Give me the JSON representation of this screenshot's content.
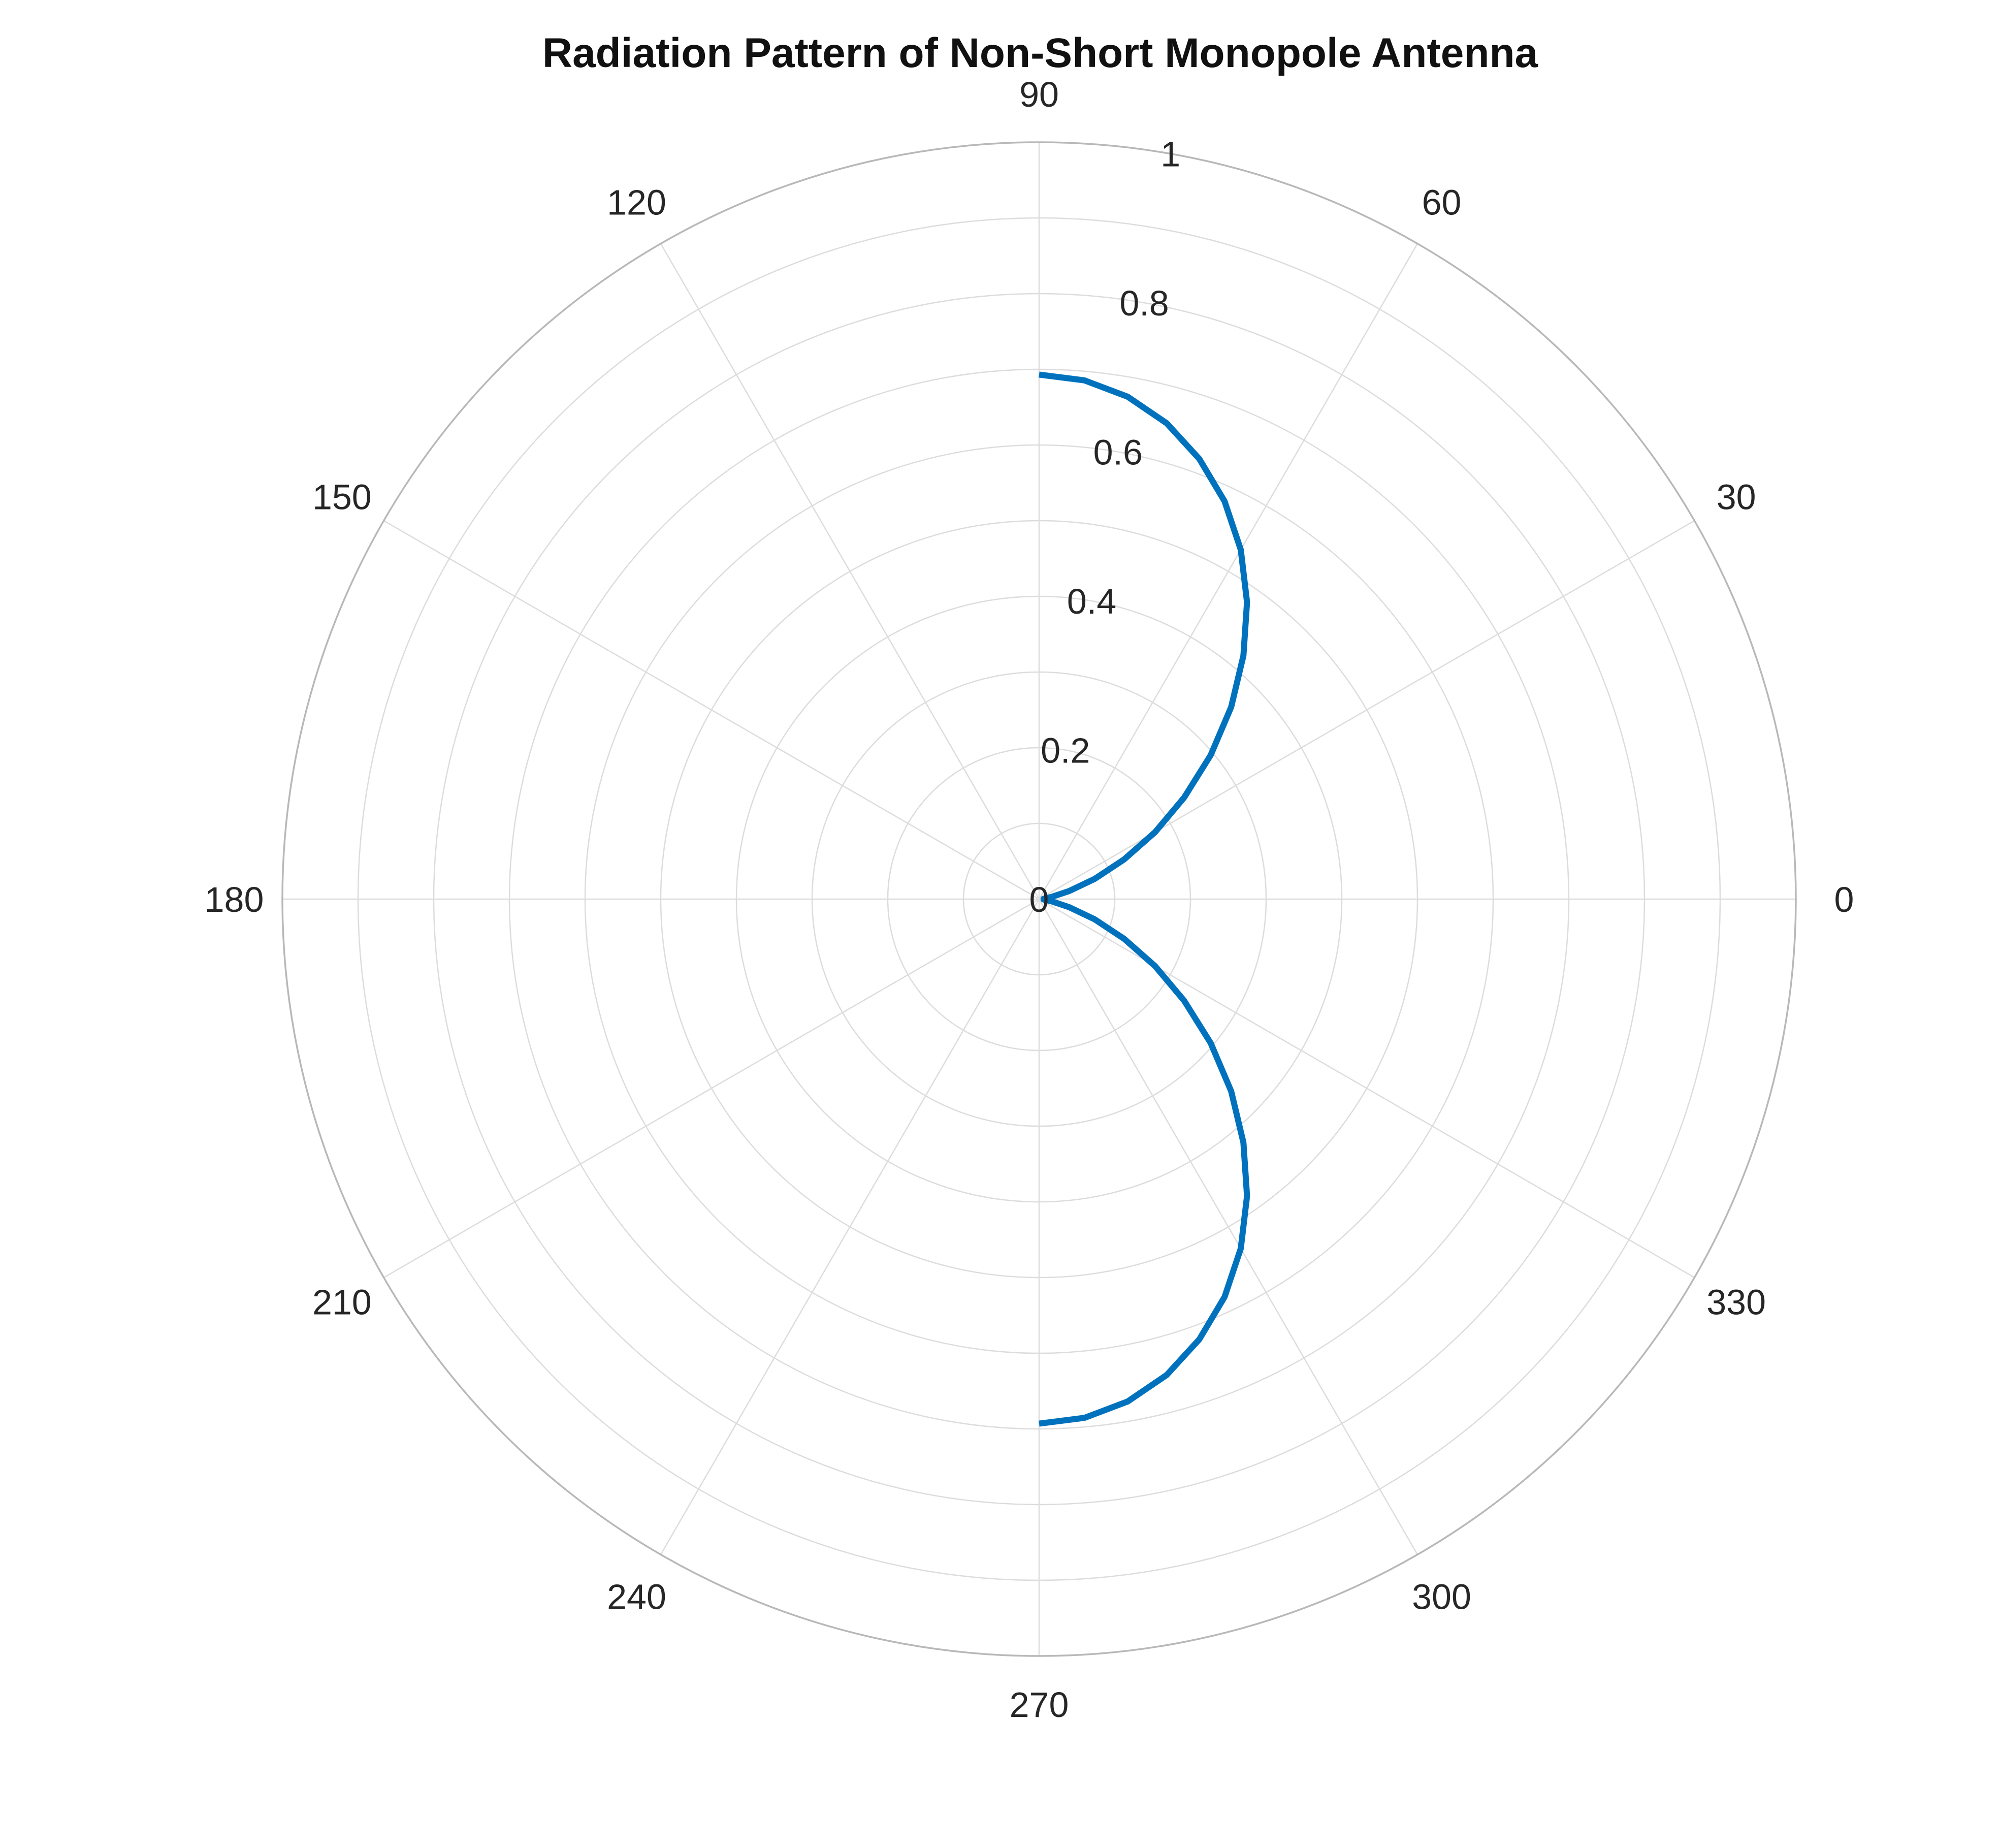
{
  "chart_data": {
    "type": "line",
    "coordinate_system": "polar",
    "title": "Radiation Pattern of Non-Short Monopole Antenna",
    "theta_unit": "degrees",
    "theta_direction": "counterclockwise",
    "theta_zero_location": "right",
    "angular_ticks": [
      0,
      30,
      60,
      90,
      120,
      150,
      180,
      210,
      240,
      270,
      300,
      330
    ],
    "angular_tick_labels": [
      "0",
      "30",
      "60",
      "90",
      "120",
      "150",
      "180",
      "210",
      "240",
      "270",
      "300",
      "330"
    ],
    "radial_ticks": [
      0,
      0.2,
      0.4,
      0.6,
      0.8,
      1
    ],
    "radial_tick_labels": [
      "0",
      "0.2",
      "0.4",
      "0.6",
      "0.8",
      "1"
    ],
    "rlim": [
      0,
      1
    ],
    "grid": true,
    "grid_color": "#dcdcdc",
    "outer_ring_color": "#b8b8b8",
    "legend": "none",
    "series": [
      {
        "color": "#0072bd",
        "theta": [
          -90,
          -85,
          -80,
          -75,
          -70,
          -65,
          -60,
          -55,
          -50,
          -45,
          -40,
          -35,
          -30,
          -25,
          -20,
          -15,
          -10,
          -5,
          0,
          5,
          10,
          15,
          20,
          25,
          30,
          35,
          40,
          45,
          50,
          55,
          60,
          65,
          70,
          75,
          80,
          85,
          90
        ],
        "r": [
          0.693,
          0.688,
          0.674,
          0.651,
          0.619,
          0.58,
          0.533,
          0.479,
          0.42,
          0.359,
          0.296,
          0.234,
          0.177,
          0.124,
          0.078,
          0.041,
          0.017,
          0.006,
          0.01,
          0.006,
          0.017,
          0.041,
          0.078,
          0.124,
          0.177,
          0.234,
          0.296,
          0.359,
          0.42,
          0.479,
          0.533,
          0.58,
          0.619,
          0.651,
          0.674,
          0.688,
          0.693
        ]
      }
    ]
  }
}
